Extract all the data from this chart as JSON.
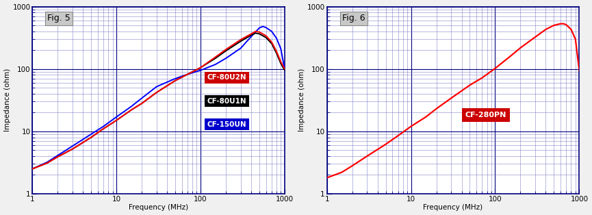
{
  "fig1_title": "Fig. 5",
  "fig2_title": "Fig. 6",
  "xlabel": "Frequency (MHz)",
  "ylabel": "Impedance (ohm)",
  "xlim": [
    1,
    1000
  ],
  "ylim": [
    1,
    1000
  ],
  "background_color": "#f0f0f0",
  "plot_bg_color": "#ffffff",
  "grid_major_color": "#000080",
  "grid_minor_color": "#6666bb",
  "series1": {
    "label": "CF-80U2N",
    "color": "#ff0000",
    "freq": [
      1,
      1.5,
      2,
      3,
      5,
      7,
      10,
      15,
      20,
      30,
      50,
      70,
      100,
      150,
      200,
      300,
      400,
      450,
      500,
      600,
      700,
      800,
      900,
      1000
    ],
    "imp": [
      2.5,
      3.1,
      3.9,
      5.2,
      8.0,
      11,
      15,
      22,
      28,
      42,
      65,
      82,
      105,
      155,
      205,
      295,
      365,
      400,
      390,
      340,
      270,
      190,
      130,
      100
    ]
  },
  "series2": {
    "label": "CF-80U1N",
    "color": "#000000",
    "freq": [
      1,
      1.5,
      2,
      3,
      5,
      7,
      10,
      15,
      20,
      30,
      50,
      70,
      100,
      150,
      200,
      300,
      400,
      450,
      500,
      600,
      700,
      800,
      900,
      1000
    ],
    "imp": [
      2.5,
      3.1,
      3.9,
      5.2,
      8.0,
      11,
      15,
      22,
      28,
      42,
      65,
      82,
      105,
      148,
      195,
      278,
      348,
      375,
      365,
      318,
      255,
      178,
      122,
      95
    ]
  },
  "series3": {
    "label": "CF-150UN",
    "color": "#0000ff",
    "freq": [
      1,
      1.5,
      2,
      3,
      5,
      7,
      10,
      15,
      20,
      30,
      50,
      70,
      100,
      150,
      200,
      300,
      400,
      500,
      550,
      600,
      700,
      800,
      900,
      1000
    ],
    "imp": [
      2.5,
      3.2,
      4.1,
      5.8,
      9.0,
      12,
      17,
      25,
      34,
      52,
      70,
      82,
      95,
      118,
      148,
      215,
      330,
      455,
      480,
      460,
      400,
      310,
      210,
      98
    ]
  },
  "series4": {
    "label": "CF-280PN",
    "color": "#ff0000",
    "freq": [
      1,
      1.5,
      2,
      3,
      5,
      7,
      10,
      15,
      20,
      30,
      50,
      70,
      100,
      150,
      200,
      300,
      400,
      500,
      600,
      650,
      700,
      800,
      900,
      1000
    ],
    "imp": [
      1.8,
      2.2,
      2.8,
      4.0,
      6.2,
      8.5,
      12,
      17,
      23,
      34,
      55,
      72,
      102,
      158,
      218,
      325,
      430,
      500,
      530,
      530,
      510,
      430,
      300,
      95
    ]
  },
  "legend1_entries": [
    {
      "label": "CF-80U2N",
      "bg": "#cc0000"
    },
    {
      "label": "CF-80U1N",
      "bg": "#000000"
    },
    {
      "label": "CF-150UN",
      "bg": "#0000cc"
    }
  ],
  "legend2_entry": {
    "label": "CF-280PN",
    "bg": "#cc0000"
  }
}
